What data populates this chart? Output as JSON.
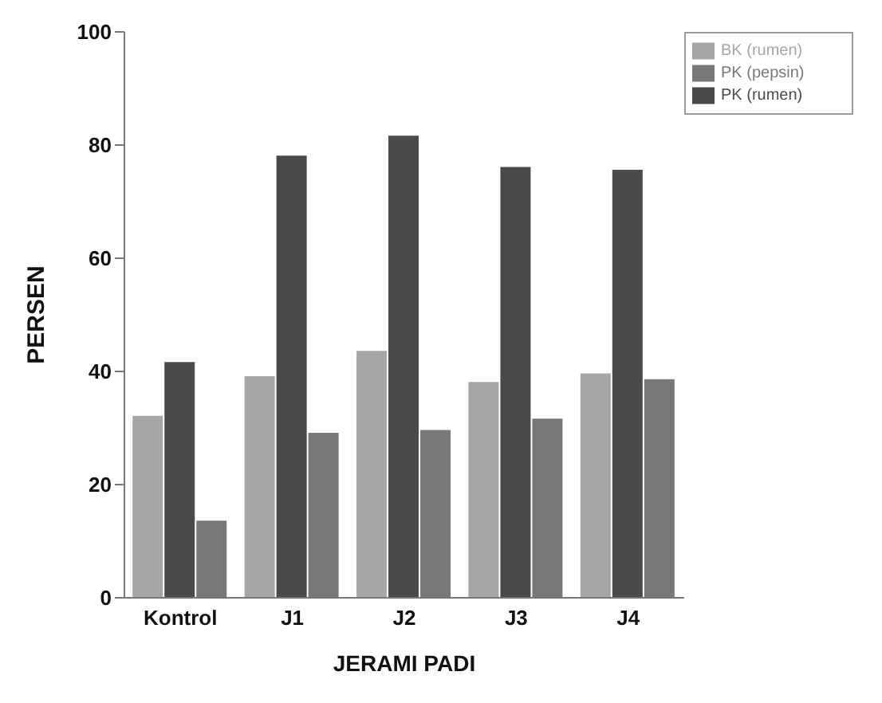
{
  "chart_data": {
    "type": "bar",
    "xlabel": "JERAMI PADI",
    "ylabel": "PERSEN",
    "categories": [
      "Kontrol",
      "J1",
      "J2",
      "J3",
      "J4"
    ],
    "series": [
      {
        "name": "BK (rumen)",
        "color": "#a6a6a6",
        "values": [
          32,
          39,
          43.5,
          38,
          39.5
        ]
      },
      {
        "name": "PK (rumen)",
        "color": "#4a4a4a",
        "values": [
          41.5,
          78,
          81.5,
          76,
          75.5
        ]
      },
      {
        "name": "PK (pepsin)",
        "color": "#787878",
        "values": [
          13.5,
          29,
          29.5,
          31.5,
          38.5
        ]
      }
    ],
    "ylim": [
      0,
      100
    ],
    "yticks": [
      0,
      20,
      40,
      60,
      80,
      100
    ],
    "grid": false,
    "legend": "top right"
  }
}
